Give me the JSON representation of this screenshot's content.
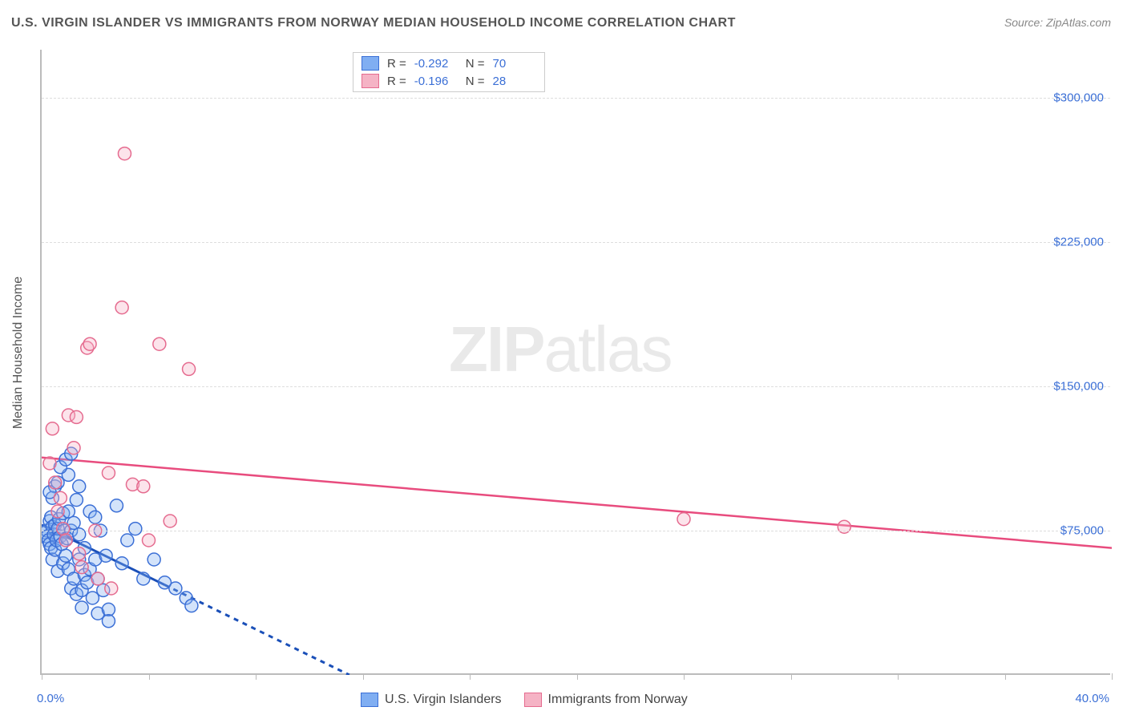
{
  "title": "U.S. VIRGIN ISLANDER VS IMMIGRANTS FROM NORWAY MEDIAN HOUSEHOLD INCOME CORRELATION CHART",
  "source": "Source: ZipAtlas.com",
  "watermark_zip": "ZIP",
  "watermark_atlas": "atlas",
  "y_axis_title": "Median Household Income",
  "chart": {
    "type": "scatter",
    "xlim": [
      0,
      40
    ],
    "ylim": [
      0,
      325000
    ],
    "x_min_label": "0.0%",
    "x_max_label": "40.0%",
    "y_ticks": [
      75000,
      150000,
      225000,
      300000
    ],
    "y_tick_labels": [
      "$75,000",
      "$150,000",
      "$225,000",
      "$300,000"
    ],
    "x_tick_positions": [
      0,
      4,
      8,
      12,
      16,
      20,
      24,
      28,
      32,
      36,
      40
    ],
    "background_color": "#ffffff",
    "grid_color": "#dddddd",
    "axis_color": "#bbbbbb",
    "tick_label_color": "#3b6fd6",
    "marker_radius": 8,
    "series": [
      {
        "name": "U.S. Virgin Islanders",
        "fill_color": "#80aef2",
        "stroke_color": "#3b6fd6",
        "R": "-0.292",
        "N": "70",
        "trend": {
          "x1": 0,
          "y1": 78000,
          "x2": 11.5,
          "y2": 0,
          "dash_after_x": 4.6,
          "color": "#1a4fb8",
          "width": 3
        },
        "points": [
          [
            0.1,
            74000
          ],
          [
            0.2,
            75000
          ],
          [
            0.2,
            72000
          ],
          [
            0.25,
            70000
          ],
          [
            0.3,
            80000
          ],
          [
            0.3,
            68000
          ],
          [
            0.35,
            82000
          ],
          [
            0.35,
            66000
          ],
          [
            0.4,
            77000
          ],
          [
            0.4,
            60000
          ],
          [
            0.45,
            73000
          ],
          [
            0.5,
            78000
          ],
          [
            0.5,
            65000
          ],
          [
            0.55,
            70000
          ],
          [
            0.6,
            76000
          ],
          [
            0.6,
            54000
          ],
          [
            0.65,
            81000
          ],
          [
            0.7,
            72000
          ],
          [
            0.75,
            68000
          ],
          [
            0.8,
            84000
          ],
          [
            0.8,
            58000
          ],
          [
            0.85,
            75000
          ],
          [
            0.9,
            62000
          ],
          [
            0.95,
            71000
          ],
          [
            1.0,
            85000
          ],
          [
            1.0,
            55000
          ],
          [
            1.1,
            75000
          ],
          [
            1.1,
            45000
          ],
          [
            1.2,
            79000
          ],
          [
            1.2,
            50000
          ],
          [
            1.3,
            91000
          ],
          [
            1.3,
            42000
          ],
          [
            1.4,
            73000
          ],
          [
            1.4,
            60000
          ],
          [
            1.5,
            44000
          ],
          [
            1.5,
            35000
          ],
          [
            1.6,
            52000
          ],
          [
            1.6,
            66000
          ],
          [
            1.7,
            48000
          ],
          [
            1.8,
            55000
          ],
          [
            1.8,
            85000
          ],
          [
            1.9,
            40000
          ],
          [
            2.0,
            60000
          ],
          [
            2.1,
            32000
          ],
          [
            2.1,
            50000
          ],
          [
            2.2,
            75000
          ],
          [
            2.3,
            44000
          ],
          [
            2.4,
            62000
          ],
          [
            2.5,
            34000
          ],
          [
            2.5,
            28000
          ],
          [
            1.0,
            104000
          ],
          [
            0.7,
            108000
          ],
          [
            0.5,
            98000
          ],
          [
            0.4,
            92000
          ],
          [
            0.6,
            100000
          ],
          [
            0.9,
            112000
          ],
          [
            1.1,
            115000
          ],
          [
            0.3,
            95000
          ],
          [
            1.4,
            98000
          ],
          [
            2.0,
            82000
          ],
          [
            2.8,
            88000
          ],
          [
            3.0,
            58000
          ],
          [
            3.2,
            70000
          ],
          [
            3.5,
            76000
          ],
          [
            3.8,
            50000
          ],
          [
            4.2,
            60000
          ],
          [
            4.6,
            48000
          ],
          [
            5.0,
            45000
          ],
          [
            5.4,
            40000
          ],
          [
            5.6,
            36000
          ]
        ]
      },
      {
        "name": "Immigrants from Norway",
        "fill_color": "#f5b3c5",
        "stroke_color": "#e56b8f",
        "R": "-0.196",
        "N": "28",
        "trend": {
          "x1": 0,
          "y1": 113000,
          "x2": 40,
          "y2": 66000,
          "color": "#e84c7e",
          "width": 2.5
        },
        "points": [
          [
            0.3,
            110000
          ],
          [
            0.4,
            128000
          ],
          [
            0.5,
            100000
          ],
          [
            0.6,
            85000
          ],
          [
            0.7,
            92000
          ],
          [
            0.8,
            76000
          ],
          [
            0.9,
            70000
          ],
          [
            1.0,
            135000
          ],
          [
            1.2,
            118000
          ],
          [
            1.3,
            134000
          ],
          [
            1.4,
            63000
          ],
          [
            1.5,
            56000
          ],
          [
            1.7,
            170000
          ],
          [
            1.8,
            172000
          ],
          [
            2.0,
            75000
          ],
          [
            2.1,
            50000
          ],
          [
            2.5,
            105000
          ],
          [
            2.6,
            45000
          ],
          [
            3.0,
            191000
          ],
          [
            3.1,
            271000
          ],
          [
            3.4,
            99000
          ],
          [
            3.8,
            98000
          ],
          [
            4.0,
            70000
          ],
          [
            4.4,
            172000
          ],
          [
            4.8,
            80000
          ],
          [
            5.5,
            159000
          ],
          [
            24.0,
            81000
          ],
          [
            30.0,
            77000
          ]
        ]
      }
    ]
  },
  "legend_top": {
    "r_label": "R =",
    "n_label": "N ="
  },
  "legend_bottom_labels": [
    "U.S. Virgin Islanders",
    "Immigrants from Norway"
  ]
}
